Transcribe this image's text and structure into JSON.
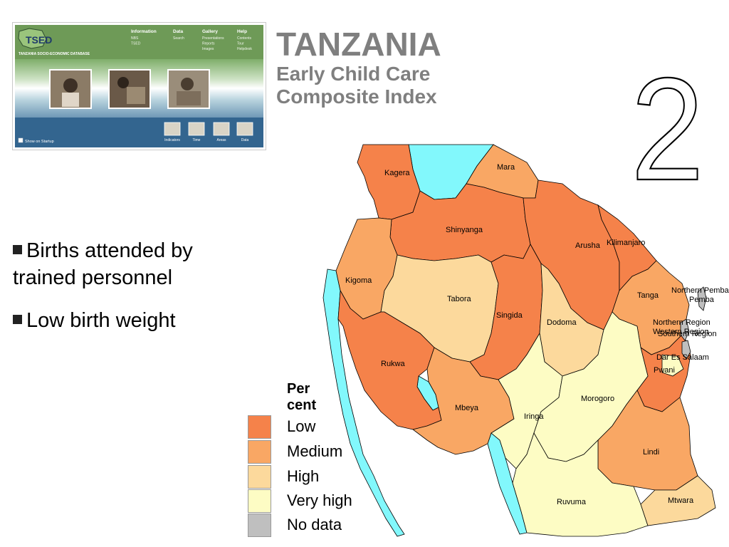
{
  "title": {
    "country": "TANZANIA",
    "line2": "Early Child Care",
    "line3": "Composite Index"
  },
  "big_number": "2",
  "bullets": [
    "Births attended by trained personnel",
    "Low birth weight"
  ],
  "tsed_panel": {
    "logo_text": "TSED",
    "logo_subtitle": "TANZANIA SOCIO-ECONOMIC DATABASE",
    "menus": [
      {
        "label": "Information",
        "items": [
          "NBS",
          "TSED"
        ]
      },
      {
        "label": "Data",
        "items": [
          "Search"
        ]
      },
      {
        "label": "Gallery",
        "items": [
          "Presentations",
          "Reports",
          "Images"
        ]
      },
      {
        "label": "Help",
        "items": [
          "Contents",
          "Tour",
          "Helpdesk"
        ]
      }
    ],
    "toolbar_buttons": [
      "Indicators",
      "Time",
      "Areas",
      "Data"
    ],
    "show_on_startup": "Show on Startup"
  },
  "legend": {
    "title": "Per cent",
    "items": [
      {
        "label": "Low",
        "color": "#f5824a"
      },
      {
        "label": "Medium",
        "color": "#f9a764"
      },
      {
        "label": "High",
        "color": "#fcd99c"
      },
      {
        "label": "Very high",
        "color": "#fdfcc4"
      },
      {
        "label": "No data",
        "color": "#bfbfbf"
      }
    ]
  },
  "map": {
    "water_color": "#82f8fc",
    "regions": [
      {
        "name": "Kagera",
        "category": "Low"
      },
      {
        "name": "Mara",
        "category": "Medium"
      },
      {
        "name": "Shinyanga",
        "category": "Low"
      },
      {
        "name": "Arusha",
        "category": "Low"
      },
      {
        "name": "Kilimanjaro",
        "category": "Low"
      },
      {
        "name": "Kigoma",
        "category": "Medium"
      },
      {
        "name": "Tabora",
        "category": "High"
      },
      {
        "name": "Singida",
        "category": "Low"
      },
      {
        "name": "Dodoma",
        "category": "High"
      },
      {
        "name": "Tanga",
        "category": "Medium"
      },
      {
        "name": "Northern Pemba",
        "category": "No data"
      },
      {
        "name": "Pemba",
        "category": "No data"
      },
      {
        "name": "Northern Region",
        "category": "No data"
      },
      {
        "name": "Western Region",
        "category": "No data"
      },
      {
        "name": "Southern Region",
        "category": "No data"
      },
      {
        "name": "Dar Es Salaam",
        "category": "Very high"
      },
      {
        "name": "Pwani",
        "category": "Low"
      },
      {
        "name": "Rukwa",
        "category": "Low"
      },
      {
        "name": "Mbeya",
        "category": "Medium"
      },
      {
        "name": "Iringa",
        "category": "Very high"
      },
      {
        "name": "Morogoro",
        "category": "Very high"
      },
      {
        "name": "Lindi",
        "category": "Medium"
      },
      {
        "name": "Ruvuma",
        "category": "Very high"
      },
      {
        "name": "Mtwara",
        "category": "High"
      }
    ]
  }
}
